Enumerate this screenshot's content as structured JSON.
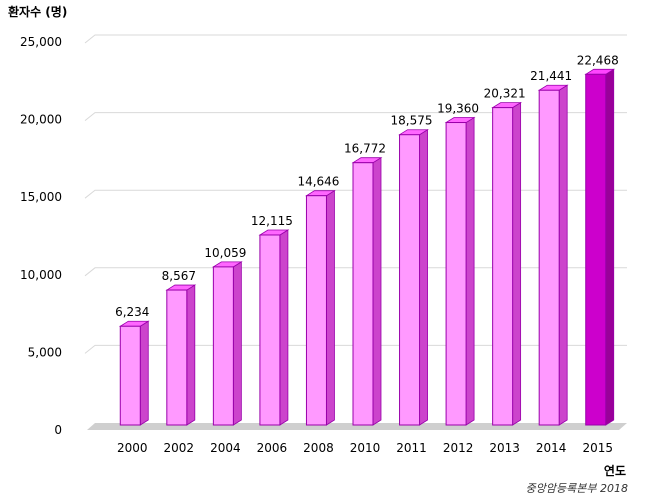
{
  "chart_data": {
    "type": "bar",
    "ylabel": "환자수 (명)",
    "xlabel": "연도",
    "source": "중앙암등록본부 2018",
    "categories": [
      "2000",
      "2002",
      "2004",
      "2006",
      "2008",
      "2010",
      "2011",
      "2012",
      "2013",
      "2014",
      "2015"
    ],
    "values": [
      6234,
      8567,
      10059,
      12115,
      14646,
      16772,
      18575,
      19360,
      20321,
      21441,
      22468
    ],
    "value_labels": [
      "6,234",
      "8,567",
      "10,059",
      "12,115",
      "14,646",
      "16,772",
      "18,575",
      "19,360",
      "20,321",
      "21,441",
      "22,468"
    ],
    "y_ticks": [
      0,
      5000,
      10000,
      15000,
      20000,
      25000
    ],
    "y_tick_labels": [
      "0",
      "5,000",
      "10,000",
      "15,000",
      "20,000",
      "25,000"
    ],
    "ylim": [
      0,
      25000
    ],
    "grid": true,
    "highlight_index": 10,
    "colors": {
      "bar_front": "#ff99ff",
      "bar_top": "#ff66ff",
      "bar_side": "#cc44cc",
      "bar_outline": "#9900aa",
      "highlight_front": "#cc00cc",
      "highlight_top": "#ff44ff",
      "highlight_side": "#990099",
      "gridline": "#d9d9d9"
    }
  }
}
